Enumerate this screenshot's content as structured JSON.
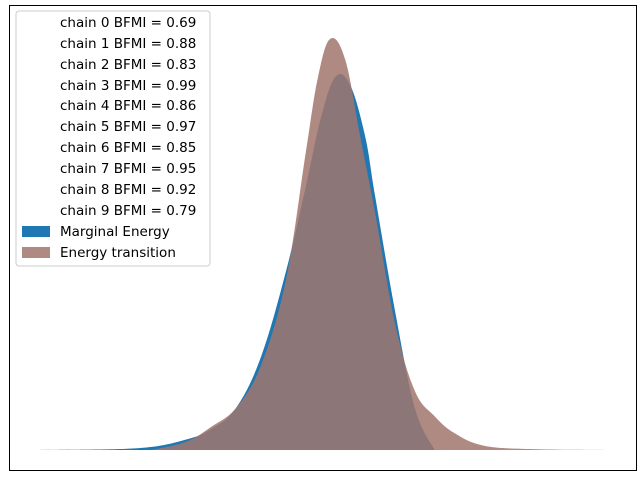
{
  "chart_data": {
    "type": "area",
    "title": "",
    "xlabel": "",
    "ylabel": "",
    "axes_ticks": false,
    "grid": false,
    "legend_position": "top-left",
    "x_range": [
      -6.0,
      5.5
    ],
    "y_range": [
      0,
      1.0
    ],
    "legend": {
      "chain_labels": [
        "chain  0 BFMI = 0.69",
        "chain  1 BFMI = 0.88",
        "chain  2 BFMI = 0.83",
        "chain  3 BFMI = 0.99",
        "chain  4 BFMI = 0.86",
        "chain  5 BFMI = 0.97",
        "chain  6 BFMI = 0.85",
        "chain  7 BFMI = 0.95",
        "chain  8 BFMI = 0.92",
        "chain  9 BFMI = 0.79"
      ]
    },
    "series": [
      {
        "name": "Marginal Energy",
        "color": "#1f77b4",
        "x": [
          -6.0,
          -4.0,
          -3.0,
          -2.5,
          -2.0,
          -1.5,
          -1.0,
          -0.6,
          -0.3,
          0.0,
          0.3,
          0.6,
          0.8,
          1.2,
          1.6,
          2.0
        ],
        "y": [
          0.0,
          0.004,
          0.025,
          0.05,
          0.1,
          0.22,
          0.42,
          0.62,
          0.78,
          0.88,
          0.86,
          0.74,
          0.6,
          0.33,
          0.1,
          0.0
        ]
      },
      {
        "name": "Energy transition",
        "color": "#a1756c",
        "x": [
          -3.7,
          -3.0,
          -2.5,
          -2.0,
          -1.5,
          -1.0,
          -0.6,
          -0.35,
          -0.1,
          0.2,
          0.5,
          0.8,
          1.2,
          1.6,
          2.0,
          2.4,
          3.0,
          4.0,
          5.5
        ],
        "y": [
          0.0,
          0.02,
          0.055,
          0.1,
          0.2,
          0.4,
          0.7,
          0.88,
          0.97,
          0.92,
          0.74,
          0.56,
          0.3,
          0.14,
          0.08,
          0.04,
          0.01,
          0.002,
          0.0
        ]
      }
    ]
  }
}
